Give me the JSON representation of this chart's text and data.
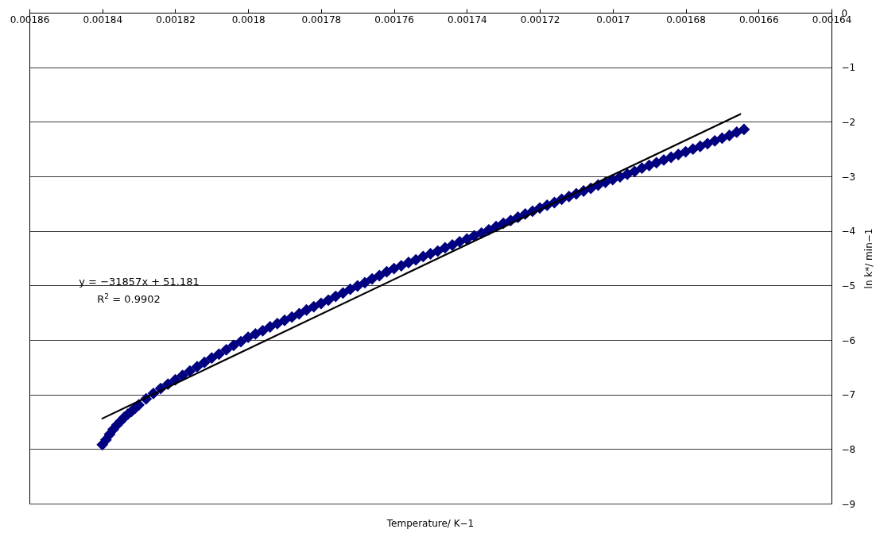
{
  "chart_data": {
    "type": "scatter",
    "xlabel": "Temperature/ K−1",
    "ylabel": "ln k*/ min−1",
    "annotations": [
      "y = −31857x + 51.181",
      "R$^{2}$ = 0.9902"
    ],
    "xlim": [
      0.00186,
      0.00164
    ],
    "xticks": [
      0.00186,
      0.00184,
      0.00182,
      0.0018,
      0.00178,
      0.00176,
      0.00174,
      0.00172,
      0.0017,
      0.00168,
      0.00166,
      0.00164
    ],
    "ylim": [
      -9,
      0
    ],
    "yticks": [
      0,
      -1,
      -2,
      -3,
      -4,
      -5,
      -6,
      -7,
      -8,
      -9
    ],
    "grid": "y",
    "series": [
      {
        "color": "#000080",
        "marker": "diamond",
        "x": [
          0.00184,
          0.001839,
          0.001838,
          0.001837,
          0.001836,
          0.001835,
          0.001834,
          0.001833,
          0.001832,
          0.001831,
          0.00183,
          0.001828,
          0.001826,
          0.001824,
          0.001822,
          0.00182,
          0.001818,
          0.001816,
          0.001814,
          0.001812,
          0.00181,
          0.001808,
          0.001806,
          0.001804,
          0.001802,
          0.0018,
          0.001798,
          0.001796,
          0.001794,
          0.001792,
          0.00179,
          0.001788,
          0.001786,
          0.001784,
          0.001782,
          0.00178,
          0.001778,
          0.001776,
          0.001774,
          0.001772,
          0.00177,
          0.001768,
          0.001766,
          0.001764,
          0.001762,
          0.00176,
          0.001758,
          0.001756,
          0.001754,
          0.001752,
          0.00175,
          0.001748,
          0.001746,
          0.001744,
          0.001742,
          0.00174,
          0.001738,
          0.001736,
          0.001734,
          0.001732,
          0.00173,
          0.001728,
          0.001726,
          0.001724,
          0.001722,
          0.00172,
          0.001718,
          0.001716,
          0.001714,
          0.001712,
          0.00171,
          0.001708,
          0.001706,
          0.001704,
          0.001702,
          0.0017,
          0.001698,
          0.001696,
          0.001694,
          0.001692,
          0.00169,
          0.001688,
          0.001686,
          0.001684,
          0.001682,
          0.00168,
          0.001678,
          0.001676,
          0.001674,
          0.001672,
          0.00167,
          0.001668,
          0.001666,
          0.001664
        ],
        "values": [
          -7.92,
          -7.83,
          -7.73,
          -7.64,
          -7.56,
          -7.49,
          -7.42,
          -7.36,
          -7.31,
          -7.25,
          -7.19,
          -7.08,
          -6.98,
          -6.89,
          -6.81,
          -6.73,
          -6.65,
          -6.57,
          -6.49,
          -6.41,
          -6.33,
          -6.26,
          -6.18,
          -6.1,
          -6.03,
          -5.95,
          -5.89,
          -5.83,
          -5.76,
          -5.7,
          -5.64,
          -5.58,
          -5.52,
          -5.45,
          -5.39,
          -5.33,
          -5.27,
          -5.2,
          -5.14,
          -5.07,
          -5.01,
          -4.95,
          -4.88,
          -4.82,
          -4.75,
          -4.69,
          -4.64,
          -4.58,
          -4.53,
          -4.47,
          -4.42,
          -4.37,
          -4.31,
          -4.26,
          -4.2,
          -4.15,
          -4.09,
          -4.04,
          -3.98,
          -3.92,
          -3.86,
          -3.81,
          -3.75,
          -3.69,
          -3.64,
          -3.58,
          -3.53,
          -3.48,
          -3.42,
          -3.37,
          -3.32,
          -3.27,
          -3.22,
          -3.16,
          -3.11,
          -3.06,
          -3.01,
          -2.96,
          -2.91,
          -2.85,
          -2.8,
          -2.75,
          -2.7,
          -2.65,
          -2.6,
          -2.55,
          -2.5,
          -2.45,
          -2.4,
          -2.35,
          -2.3,
          -2.25,
          -2.19,
          -2.14
        ]
      },
      {
        "type": "line",
        "color": "#000000",
        "marker": "none",
        "x": [
          0.00184,
          0.001665
        ],
        "values": [
          -7.44,
          -1.86
        ]
      }
    ]
  }
}
